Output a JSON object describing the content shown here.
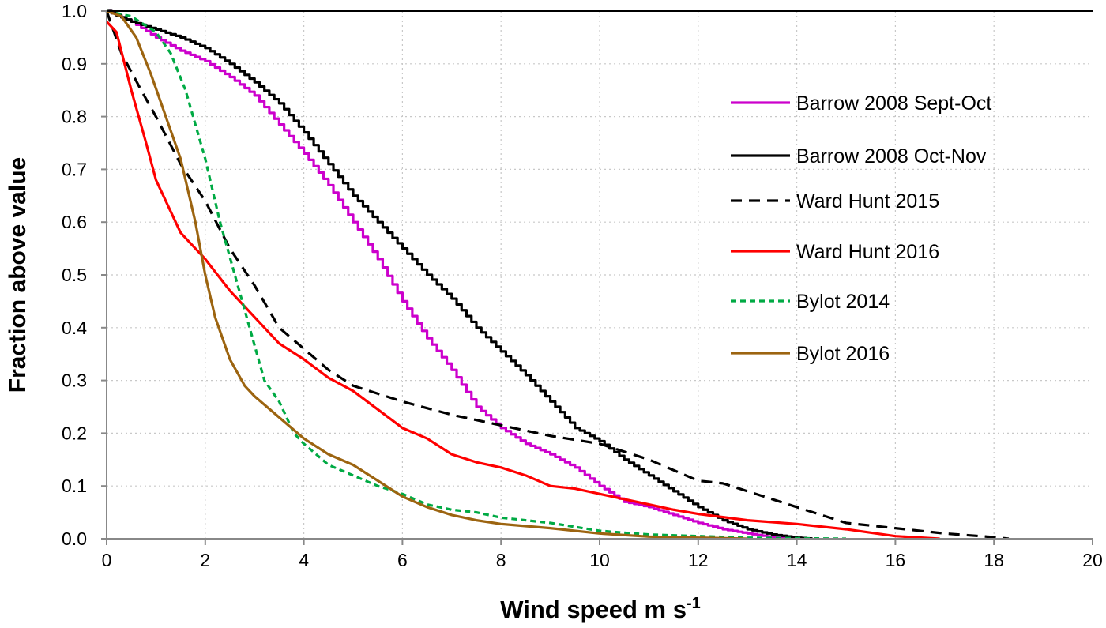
{
  "chart_data": {
    "type": "line",
    "title": "",
    "xlabel": "Wind speed m s",
    "xlabel_superscript": "-1",
    "ylabel": "Fraction above value",
    "xlim": [
      0,
      20
    ],
    "ylim": [
      0,
      1.0
    ],
    "xticks": [
      "0",
      "2",
      "4",
      "6",
      "8",
      "10",
      "12",
      "14",
      "16",
      "18",
      "20"
    ],
    "yticks": [
      "0.0",
      "0.1",
      "0.2",
      "0.3",
      "0.4",
      "0.5",
      "0.6",
      "0.7",
      "0.8",
      "0.9",
      "1.0"
    ],
    "grid": true,
    "legend_position": "right",
    "series": [
      {
        "name": "Barrow 2008 Sept-Oct",
        "color": "#cc00cc",
        "dash": "solid",
        "step": true,
        "x": [
          0,
          0.5,
          1,
          1.5,
          2,
          2.5,
          3,
          3.5,
          4,
          4.5,
          5,
          5.5,
          6,
          6.5,
          7,
          7.5,
          8,
          8.5,
          9,
          9.5,
          10,
          10.5,
          11,
          11.5,
          12,
          12.5,
          13,
          13.5,
          14
        ],
        "y": [
          1,
          0.98,
          0.95,
          0.925,
          0.905,
          0.875,
          0.84,
          0.785,
          0.73,
          0.67,
          0.6,
          0.53,
          0.45,
          0.38,
          0.32,
          0.25,
          0.21,
          0.18,
          0.16,
          0.135,
          0.1,
          0.07,
          0.06,
          0.045,
          0.03,
          0.018,
          0.01,
          0.003,
          0
        ]
      },
      {
        "name": "Barrow 2008 Oct-Nov",
        "color": "#000000",
        "dash": "solid",
        "step": true,
        "x": [
          0,
          0.5,
          1,
          1.5,
          2,
          2.5,
          3,
          3.5,
          4,
          4.5,
          5,
          5.5,
          6,
          6.5,
          7,
          7.5,
          8,
          8.5,
          9,
          9.5,
          10,
          10.5,
          11,
          11.5,
          12,
          12.5,
          13,
          13.5,
          14,
          14.3
        ],
        "y": [
          1,
          0.98,
          0.965,
          0.95,
          0.93,
          0.9,
          0.865,
          0.825,
          0.77,
          0.71,
          0.65,
          0.6,
          0.55,
          0.5,
          0.455,
          0.4,
          0.355,
          0.31,
          0.26,
          0.21,
          0.185,
          0.15,
          0.12,
          0.09,
          0.06,
          0.035,
          0.018,
          0.008,
          0.002,
          0
        ]
      },
      {
        "name": "Ward Hunt 2015",
        "color": "#000000",
        "dash": "dashed",
        "step": false,
        "x": [
          0,
          0.3,
          0.7,
          1,
          1.5,
          2,
          2.5,
          3,
          3.5,
          4,
          4.5,
          5,
          6,
          7,
          8,
          9,
          10,
          10.5,
          11,
          11.5,
          12,
          12.5,
          13,
          14,
          15,
          16,
          17,
          18,
          18.3
        ],
        "y": [
          1,
          0.92,
          0.85,
          0.8,
          0.71,
          0.64,
          0.55,
          0.48,
          0.4,
          0.36,
          0.32,
          0.29,
          0.26,
          0.235,
          0.215,
          0.195,
          0.18,
          0.165,
          0.15,
          0.13,
          0.11,
          0.105,
          0.09,
          0.06,
          0.03,
          0.02,
          0.01,
          0.003,
          0
        ]
      },
      {
        "name": "Ward Hunt 2016",
        "color": "#ff0000",
        "dash": "solid",
        "step": false,
        "x": [
          0,
          0.2,
          0.5,
          0.8,
          1,
          1.5,
          2,
          2.5,
          3,
          3.5,
          4,
          4.5,
          5,
          5.5,
          6,
          6.5,
          7,
          7.5,
          8,
          8.5,
          9,
          9.5,
          10,
          10.5,
          11,
          11.5,
          12,
          13,
          14,
          15,
          16,
          16.9
        ],
        "y": [
          0.98,
          0.96,
          0.85,
          0.75,
          0.68,
          0.58,
          0.53,
          0.47,
          0.42,
          0.37,
          0.34,
          0.305,
          0.28,
          0.245,
          0.21,
          0.19,
          0.16,
          0.145,
          0.135,
          0.12,
          0.1,
          0.095,
          0.085,
          0.075,
          0.065,
          0.055,
          0.047,
          0.035,
          0.028,
          0.018,
          0.005,
          0
        ]
      },
      {
        "name": "Bylot 2014",
        "color": "#00aa44",
        "dash": "short-dashed",
        "step": false,
        "x": [
          0,
          0.5,
          1,
          1.3,
          1.6,
          2,
          2.3,
          2.6,
          2.9,
          3.2,
          3.5,
          3.8,
          4,
          4.5,
          5,
          5.5,
          6,
          6.5,
          7,
          7.5,
          8,
          9,
          10,
          11,
          12,
          13,
          14,
          15
        ],
        "y": [
          1,
          0.99,
          0.96,
          0.92,
          0.85,
          0.72,
          0.6,
          0.5,
          0.4,
          0.3,
          0.26,
          0.2,
          0.18,
          0.14,
          0.12,
          0.1,
          0.085,
          0.065,
          0.055,
          0.05,
          0.04,
          0.03,
          0.015,
          0.008,
          0.005,
          0.002,
          0.001,
          0
        ]
      },
      {
        "name": "Bylot 2016",
        "color": "#9c6410",
        "dash": "solid",
        "step": false,
        "x": [
          0,
          0.3,
          0.6,
          0.9,
          1.2,
          1.5,
          1.8,
          2,
          2.2,
          2.5,
          2.8,
          3,
          3.5,
          4,
          4.5,
          5,
          5.5,
          6,
          6.5,
          7,
          7.5,
          8,
          9,
          10,
          11,
          12,
          13
        ],
        "y": [
          1,
          0.99,
          0.95,
          0.88,
          0.8,
          0.72,
          0.6,
          0.5,
          0.42,
          0.34,
          0.29,
          0.27,
          0.23,
          0.19,
          0.16,
          0.14,
          0.11,
          0.08,
          0.06,
          0.045,
          0.035,
          0.028,
          0.02,
          0.01,
          0.004,
          0.002,
          0
        ]
      }
    ]
  }
}
